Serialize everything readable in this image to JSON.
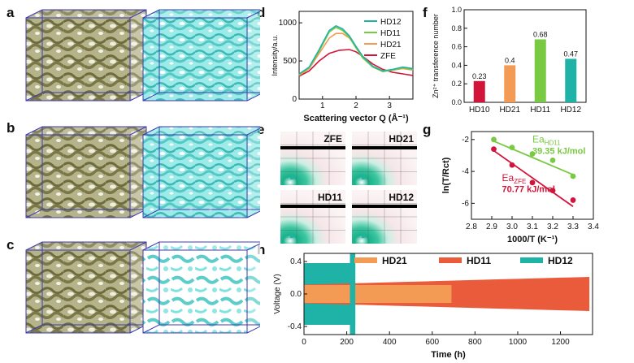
{
  "panels": {
    "a": "a",
    "b": "b",
    "c": "c",
    "d": "d",
    "e": "e",
    "f": "f",
    "g": "g",
    "h": "h"
  },
  "colors": {
    "olive": "#8c8a5a",
    "cyan": "#7fe3e0",
    "cube_edge": "#3d3ab5",
    "HD12": "#1fb3a8",
    "HD11": "#7ac943",
    "HD21": "#f39a54",
    "ZFE": "#d2143a",
    "HD10": "#d2143a"
  },
  "chart_data": [
    {
      "id": "d",
      "type": "line",
      "title": "",
      "xlabel": "Scattering vector Q (Å⁻¹)",
      "ylabel": "Intensity/a.u.",
      "xlim": [
        0.3,
        3.7
      ],
      "ylim": [
        0,
        1150
      ],
      "xticks": [
        "1",
        "2",
        "3"
      ],
      "yticks": [
        "0",
        "500",
        "1000"
      ],
      "legend": [
        "HD12",
        "HD11",
        "HD21",
        "ZFE"
      ],
      "series": [
        {
          "name": "HD12",
          "x": [
            0.3,
            0.6,
            0.9,
            1.2,
            1.4,
            1.6,
            1.8,
            2.0,
            2.2,
            2.5,
            2.8,
            3.1,
            3.4,
            3.7
          ],
          "y": [
            330,
            420,
            650,
            900,
            960,
            920,
            830,
            690,
            560,
            430,
            370,
            390,
            420,
            400
          ]
        },
        {
          "name": "HD11",
          "x": [
            0.3,
            0.6,
            0.9,
            1.2,
            1.4,
            1.6,
            1.8,
            2.0,
            2.2,
            2.5,
            2.8,
            3.1,
            3.4,
            3.7
          ],
          "y": [
            320,
            410,
            630,
            880,
            940,
            900,
            810,
            670,
            540,
            420,
            360,
            380,
            410,
            390
          ]
        },
        {
          "name": "HD21",
          "x": [
            0.3,
            0.6,
            0.9,
            1.2,
            1.4,
            1.6,
            1.8,
            2.0,
            2.2,
            2.5,
            2.8,
            3.1,
            3.4,
            3.7
          ],
          "y": [
            310,
            400,
            600,
            800,
            860,
            860,
            800,
            690,
            560,
            430,
            370,
            380,
            400,
            380
          ]
        },
        {
          "name": "ZFE",
          "x": [
            0.3,
            0.6,
            0.9,
            1.2,
            1.5,
            1.8,
            2.0,
            2.2,
            2.5,
            2.8,
            3.1,
            3.4,
            3.7
          ],
          "y": [
            300,
            370,
            500,
            600,
            640,
            650,
            620,
            560,
            460,
            390,
            350,
            330,
            310
          ]
        }
      ]
    },
    {
      "id": "f",
      "type": "bar",
      "ylabel": "Zn²⁺ transference number",
      "ylim": [
        0,
        1.0
      ],
      "yticks": [
        "0.0",
        "0.2",
        "0.4",
        "0.6",
        "0.8",
        "1.0"
      ],
      "categories": [
        "HD10",
        "HD21",
        "HD11",
        "HD12"
      ],
      "values": [
        0.23,
        0.4,
        0.68,
        0.47
      ],
      "value_labels": [
        "0.23",
        "0.4",
        "0.68",
        "0.47"
      ]
    },
    {
      "id": "g",
      "type": "scatter",
      "xlabel": "1000/T (K⁻¹)",
      "ylabel": "ln(T/Rct)",
      "xlim": [
        2.8,
        3.4
      ],
      "ylim": [
        -7,
        -1.5
      ],
      "xticks": [
        "2.8",
        "2.9",
        "3.0",
        "3.1",
        "3.2",
        "3.3",
        "3.4"
      ],
      "yticks": [
        "-2",
        "-4",
        "-6"
      ],
      "series": [
        {
          "name": "HD11",
          "label_main": "Ea",
          "label_sub": "HD11",
          "energy": "39.35 kJ/mol",
          "x": [
            2.91,
            3.0,
            3.1,
            3.2,
            3.3
          ],
          "y": [
            -2.0,
            -2.5,
            -2.9,
            -3.3,
            -4.3
          ],
          "fit": [
            [
              2.91,
              -2.1
            ],
            [
              3.3,
              -4.2
            ]
          ]
        },
        {
          "name": "ZFE",
          "label_main": "Ea",
          "label_sub": "ZFE",
          "energy": "70.77 kJ/mol",
          "x": [
            2.91,
            3.0,
            3.1,
            3.2,
            3.3
          ],
          "y": [
            -2.6,
            -3.6,
            -4.7,
            -5.2,
            -5.8
          ],
          "fit": [
            [
              2.91,
              -2.7
            ],
            [
              3.3,
              -6.2
            ]
          ]
        }
      ]
    },
    {
      "id": "h",
      "type": "area",
      "xlabel": "Time (h)",
      "ylabel": "Voltage (V)",
      "xlim": [
        0,
        1350
      ],
      "ylim": [
        -0.5,
        0.5
      ],
      "xticks": [
        "0",
        "200",
        "400",
        "600",
        "800",
        "1000",
        "1200"
      ],
      "yticks": [
        "-0.4",
        "0.0",
        "0.4"
      ],
      "legend": [
        "HD21",
        "HD11",
        "HD12"
      ],
      "series": [
        {
          "name": "HD12",
          "x_end": 240,
          "amplitude": 0.38
        },
        {
          "name": "HD11",
          "x_end": 1335,
          "amplitude": 0.21
        },
        {
          "name": "HD21",
          "x_end": 690,
          "amplitude": 0.11
        }
      ]
    }
  ],
  "e_labels": [
    "ZFE",
    "HD21",
    "HD11",
    "HD12"
  ]
}
